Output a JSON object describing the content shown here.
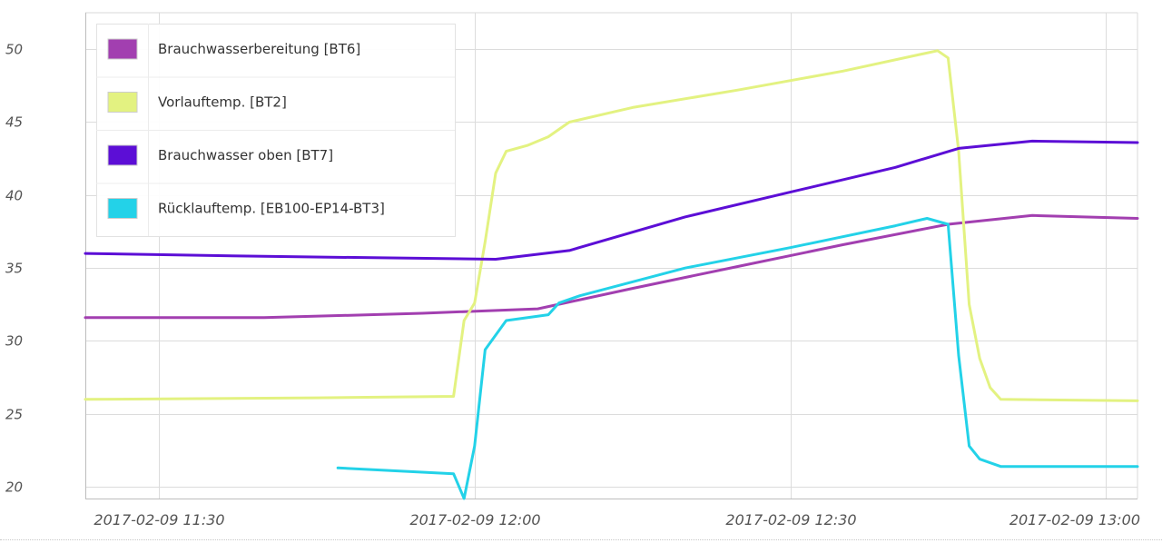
{
  "chart_data": {
    "type": "line",
    "title": "",
    "xlabel": "",
    "ylabel": "",
    "xlim": [
      "2017-02-09 11:23",
      "2017-02-09 13:03"
    ],
    "ylim": [
      19.2,
      52.5
    ],
    "x_ticks": [
      "2017-02-09 11:30",
      "2017-02-09 12:00",
      "2017-02-09 12:30",
      "2017-02-09 13:00"
    ],
    "y_ticks": [
      20,
      25,
      30,
      35,
      40,
      45,
      50
    ],
    "grid": true,
    "legend_position": "top-left",
    "series": [
      {
        "name": "Brauchwasserbereitung [BT6]",
        "color": "#a23fb0",
        "points": [
          [
            "2017-02-09 11:23",
            31.6
          ],
          [
            "2017-02-09 11:40",
            31.6
          ],
          [
            "2017-02-09 11:55",
            31.9
          ],
          [
            "2017-02-09 12:06",
            32.2
          ],
          [
            "2017-02-09 12:15",
            33.6
          ],
          [
            "2017-02-09 12:25",
            35.1
          ],
          [
            "2017-02-09 12:35",
            36.6
          ],
          [
            "2017-02-09 12:45",
            38.0
          ],
          [
            "2017-02-09 12:53",
            38.6
          ],
          [
            "2017-02-09 13:03",
            38.4
          ]
        ]
      },
      {
        "name": "Vorlauftemp. [BT2]",
        "color": "#e3f281",
        "points": [
          [
            "2017-02-09 11:23",
            26.0
          ],
          [
            "2017-02-09 11:45",
            26.1
          ],
          [
            "2017-02-09 11:58",
            26.2
          ],
          [
            "2017-02-09 11:59",
            31.4
          ],
          [
            "2017-02-09 12:00",
            32.6
          ],
          [
            "2017-02-09 12:01",
            36.8
          ],
          [
            "2017-02-09 12:02",
            41.5
          ],
          [
            "2017-02-09 12:03",
            43.0
          ],
          [
            "2017-02-09 12:05",
            43.4
          ],
          [
            "2017-02-09 12:07",
            44.0
          ],
          [
            "2017-02-09 12:09",
            45.0
          ],
          [
            "2017-02-09 12:15",
            46.0
          ],
          [
            "2017-02-09 12:25",
            47.2
          ],
          [
            "2017-02-09 12:35",
            48.5
          ],
          [
            "2017-02-09 12:44",
            49.9
          ],
          [
            "2017-02-09 12:45",
            49.4
          ],
          [
            "2017-02-09 12:46",
            43.0
          ],
          [
            "2017-02-09 12:47",
            32.5
          ],
          [
            "2017-02-09 12:48",
            28.8
          ],
          [
            "2017-02-09 12:49",
            26.8
          ],
          [
            "2017-02-09 12:50",
            26.0
          ],
          [
            "2017-02-09 13:03",
            25.9
          ]
        ]
      },
      {
        "name": "Brauchwasser oben [BT7]",
        "color": "#5c0ed6",
        "points": [
          [
            "2017-02-09 11:23",
            36.0
          ],
          [
            "2017-02-09 11:40",
            35.8
          ],
          [
            "2017-02-09 12:02",
            35.6
          ],
          [
            "2017-02-09 12:09",
            36.2
          ],
          [
            "2017-02-09 12:20",
            38.5
          ],
          [
            "2017-02-09 12:30",
            40.2
          ],
          [
            "2017-02-09 12:40",
            41.9
          ],
          [
            "2017-02-09 12:46",
            43.2
          ],
          [
            "2017-02-09 12:53",
            43.7
          ],
          [
            "2017-02-09 13:03",
            43.6
          ]
        ]
      },
      {
        "name": "Rücklauftemp. [EB100-EP14-BT3]",
        "color": "#23d2e8",
        "points": [
          [
            "2017-02-09 11:47",
            21.3
          ],
          [
            "2017-02-09 11:58",
            20.9
          ],
          [
            "2017-02-09 11:59",
            19.2
          ],
          [
            "2017-02-09 12:00",
            22.8
          ],
          [
            "2017-02-09 12:01",
            29.4
          ],
          [
            "2017-02-09 12:03",
            31.4
          ],
          [
            "2017-02-09 12:07",
            31.8
          ],
          [
            "2017-02-09 12:08",
            32.6
          ],
          [
            "2017-02-09 12:10",
            33.1
          ],
          [
            "2017-02-09 12:20",
            35.0
          ],
          [
            "2017-02-09 12:30",
            36.4
          ],
          [
            "2017-02-09 12:40",
            37.9
          ],
          [
            "2017-02-09 12:43",
            38.4
          ],
          [
            "2017-02-09 12:45",
            38.0
          ],
          [
            "2017-02-09 12:46",
            29.0
          ],
          [
            "2017-02-09 12:47",
            22.8
          ],
          [
            "2017-02-09 12:48",
            21.9
          ],
          [
            "2017-02-09 12:50",
            21.4
          ],
          [
            "2017-02-09 13:03",
            21.4
          ]
        ]
      }
    ]
  }
}
